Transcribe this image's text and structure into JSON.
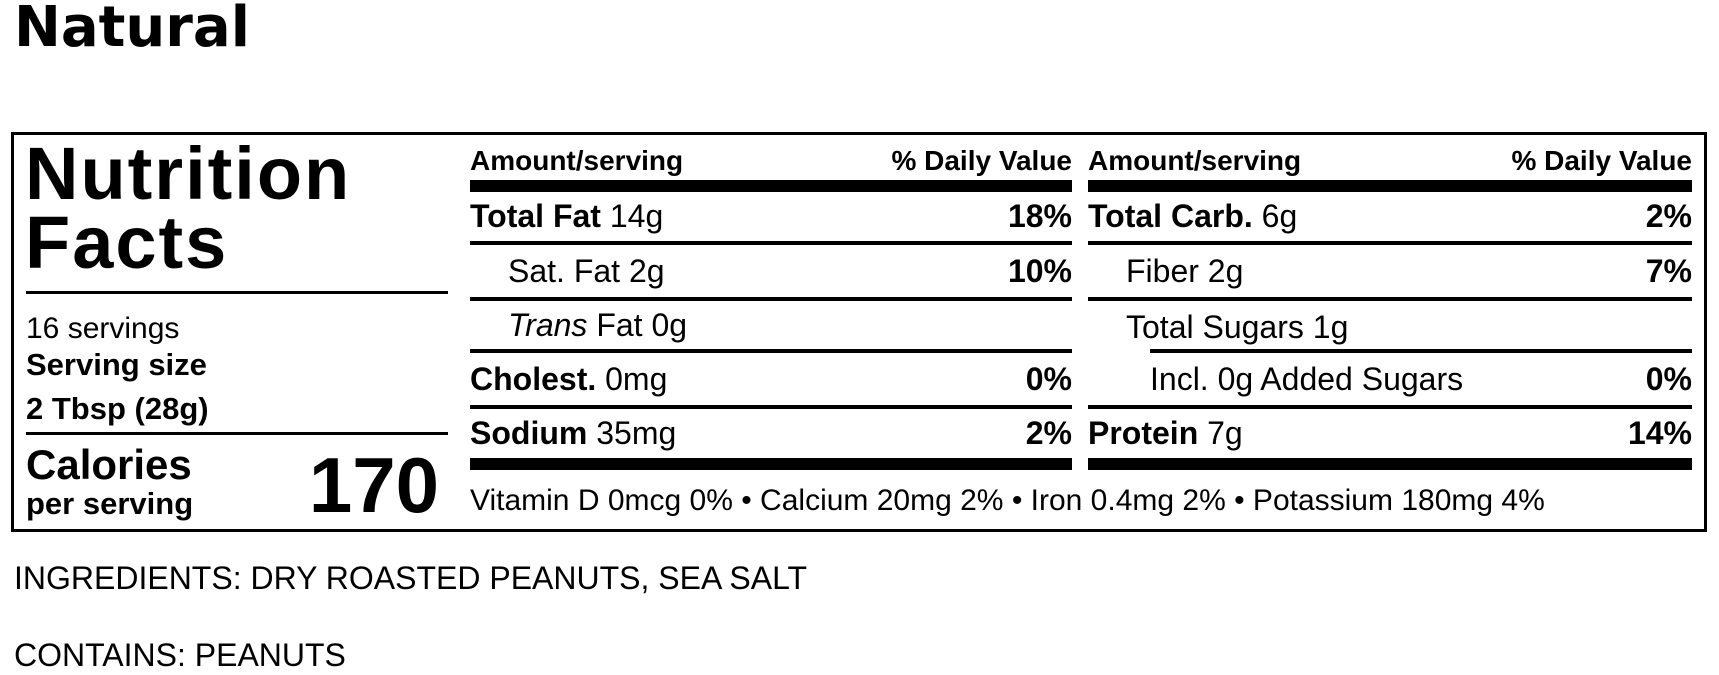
{
  "title": "Natural",
  "panel": {
    "heading_line1": "Nutrition",
    "heading_line2": "Facts",
    "servings": "16 servings",
    "serving_size_label": "Serving size",
    "serving_size_value": "2 Tbsp (28g)",
    "calories_label": "Calories",
    "calories_sub": "per serving",
    "calories_value": "170",
    "columns": [
      {
        "header_amount": "Amount/serving",
        "header_dv": "% Daily Value",
        "rows": [
          {
            "bold": "Total Fat",
            "text": "14g",
            "dv": "18%"
          },
          {
            "text": "Sat. Fat 2g",
            "dv": "10%"
          },
          {
            "italic": "Trans",
            "text": "Fat 0g",
            "dv": ""
          },
          {
            "bold": "Cholest.",
            "text": "0mg",
            "dv": "0%"
          },
          {
            "bold": "Sodium",
            "text": "35mg",
            "dv": "2%"
          }
        ]
      },
      {
        "header_amount": "Amount/serving",
        "header_dv": "% Daily Value",
        "rows": [
          {
            "bold": "Total Carb.",
            "text": "6g",
            "dv": "2%"
          },
          {
            "text": "Fiber 2g",
            "dv": "7%"
          },
          {
            "text": "Total Sugars 1g",
            "dv": ""
          },
          {
            "text": "Incl. 0g Added Sugars",
            "dv": "0%"
          },
          {
            "bold": "Protein",
            "text": "7g",
            "dv": "14%"
          }
        ]
      }
    ],
    "footnote": "Vitamin D 0mcg 0% • Calcium 20mg 2% • Iron 0.4mg 2% • Potassium 180mg 4%"
  },
  "ingredients": "INGREDIENTS: DRY ROASTED PEANUTS, SEA SALT",
  "contains": "CONTAINS: PEANUTS"
}
